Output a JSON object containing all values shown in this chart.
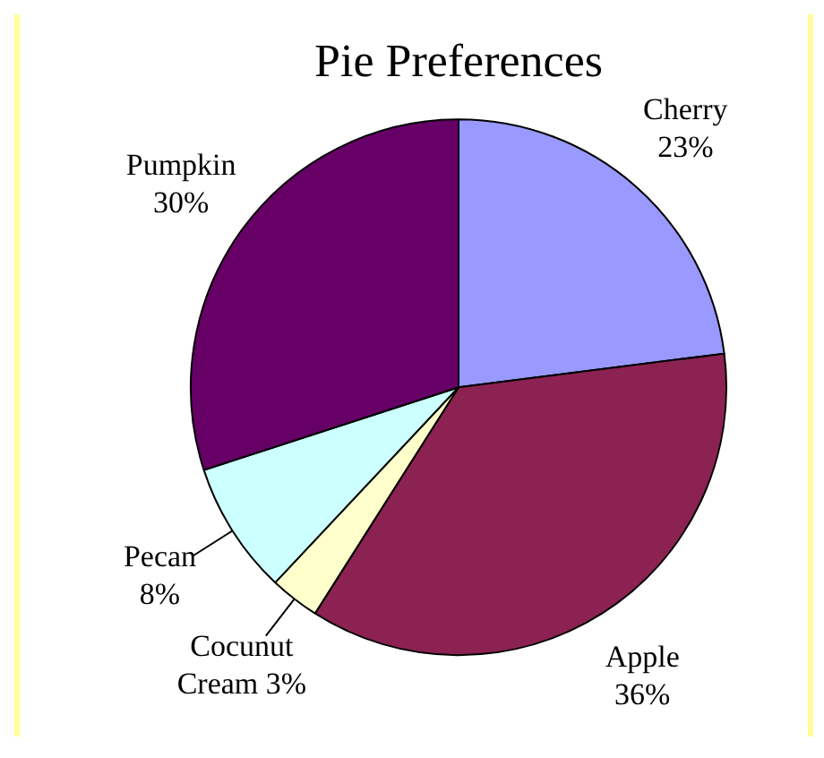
{
  "chart_data": {
    "type": "pie",
    "title": "Pie Preferences",
    "categories": [
      "Cherry",
      "Apple",
      "Cocunut Cream",
      "Pecan",
      "Pumpkin"
    ],
    "values": [
      23,
      36,
      3,
      8,
      30
    ],
    "colors": [
      "#9999ff",
      "#8b2252",
      "#ffffcc",
      "#ccffff",
      "#660066"
    ],
    "value_labels": [
      "23%",
      "36%",
      "3%",
      "8%",
      "30%"
    ],
    "legend": false
  }
}
